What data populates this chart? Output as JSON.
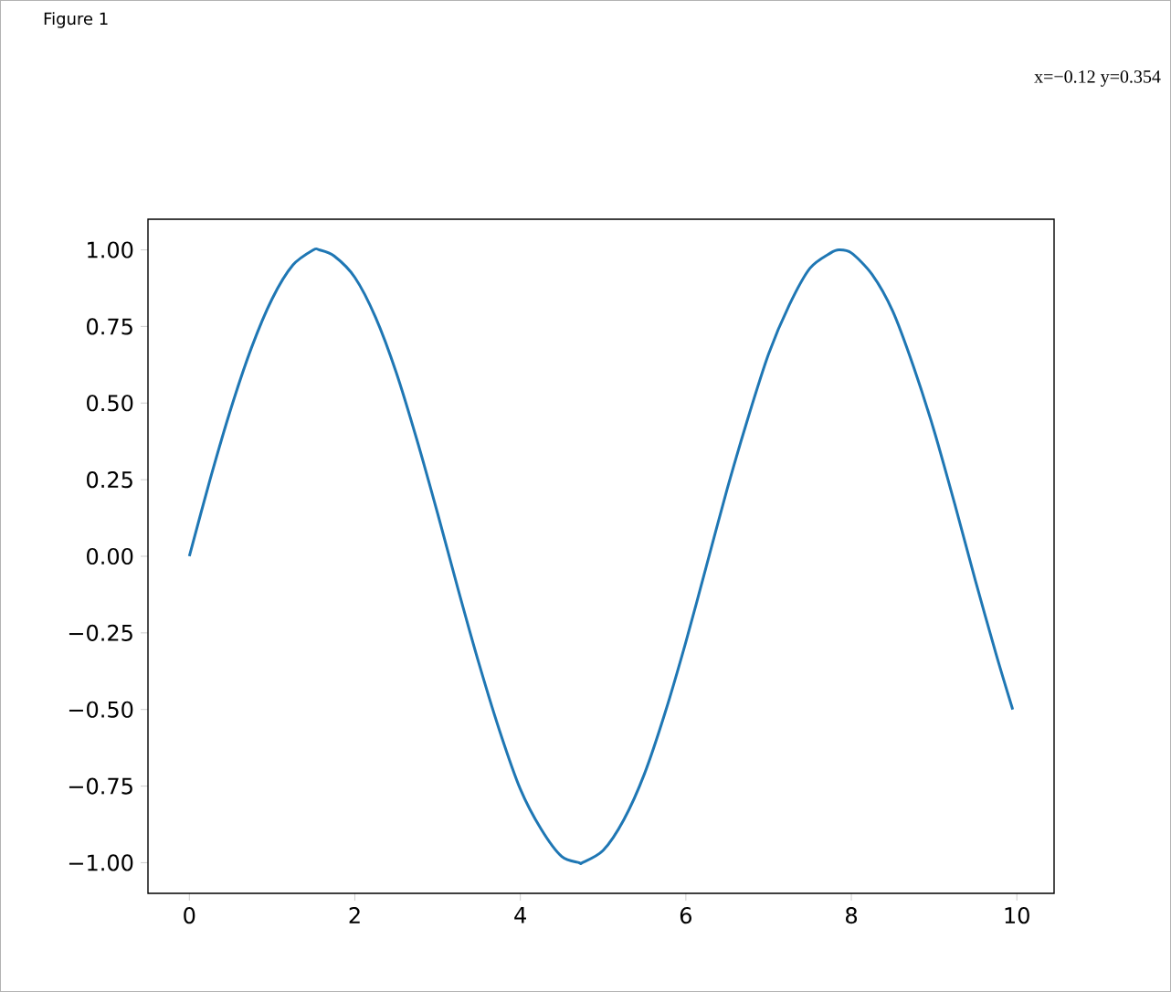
{
  "chart_data": {
    "type": "line",
    "title": "Figure 1",
    "annotations": [
      "x=−0.12 y=0.354"
    ],
    "x": [
      0,
      0.25,
      0.5,
      0.75,
      1,
      1.25,
      1.5,
      1.57,
      1.75,
      2,
      2.25,
      2.5,
      2.75,
      3,
      3.25,
      3.5,
      3.75,
      4,
      4.25,
      4.5,
      4.71,
      4.75,
      5,
      5.25,
      5.5,
      5.75,
      6,
      6.25,
      6.5,
      6.75,
      7,
      7.25,
      7.5,
      7.75,
      7.85,
      8,
      8.25,
      8.5,
      8.75,
      9,
      9.25,
      9.5,
      9.75,
      9.95
    ],
    "series": [
      {
        "color": "#1f77b4",
        "values": [
          0,
          0.25,
          0.48,
          0.68,
          0.84,
          0.95,
          1.0,
          1.0,
          0.98,
          0.91,
          0.78,
          0.6,
          0.38,
          0.14,
          -0.11,
          -0.35,
          -0.57,
          -0.76,
          -0.89,
          -0.98,
          -1.0,
          -1.0,
          -0.96,
          -0.86,
          -0.71,
          -0.51,
          -0.28,
          -0.03,
          0.22,
          0.45,
          0.66,
          0.82,
          0.94,
          0.99,
          1.0,
          0.99,
          0.92,
          0.8,
          0.62,
          0.41,
          0.17,
          -0.08,
          -0.32,
          -0.5
        ]
      }
    ],
    "xlim": [
      -0.5,
      10.45
    ],
    "ylim": [
      -1.1,
      1.1
    ],
    "xticks": [
      0,
      2,
      4,
      6,
      8,
      10
    ],
    "yticks": [
      {
        "value": 1,
        "label": "1.00"
      },
      {
        "value": 0.75,
        "label": "0.75"
      },
      {
        "value": 0.5,
        "label": "0.50"
      },
      {
        "value": 0.25,
        "label": "0.25"
      },
      {
        "value": 0,
        "label": "0.00"
      },
      {
        "value": -0.25,
        "label": "−0.25"
      },
      {
        "value": -0.5,
        "label": "−0.50"
      },
      {
        "value": -0.75,
        "label": "−0.75"
      },
      {
        "value": -1,
        "label": "−1.00"
      }
    ],
    "grid": false,
    "marker": "none",
    "line_style": "solid"
  }
}
